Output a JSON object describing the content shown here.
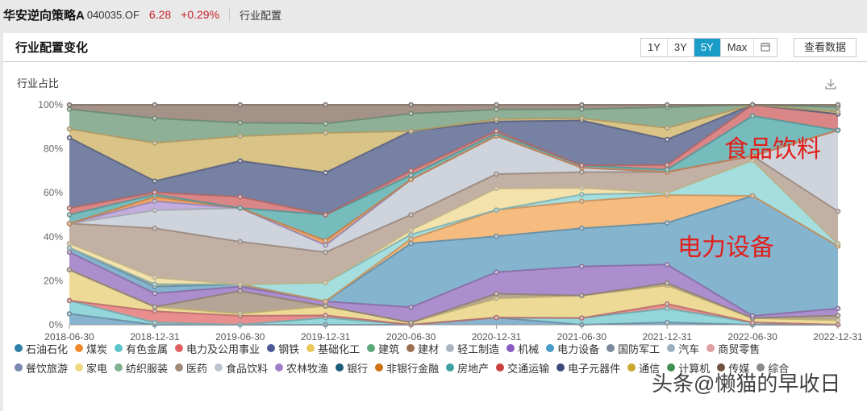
{
  "topbar": {
    "fund_name": "华安逆向策略A",
    "fund_code": "040035.OF",
    "nav": "6.28",
    "change": "+0.29%",
    "crumb": "行业配置"
  },
  "panel": {
    "title": "行业配置变化",
    "ranges": [
      "1Y",
      "3Y",
      "5Y",
      "Max"
    ],
    "active_range": "5Y",
    "calendar_icon": "calendar-icon",
    "view_data": "查看数据",
    "y_axis_title": "行业占比",
    "download_icon": "download-icon"
  },
  "annotations": {
    "food": "食品饮料",
    "power": "电力设备"
  },
  "watermark": "头条@懒猫的早收日",
  "legend": {
    "row1": [
      {
        "name": "石油石化",
        "color": "#2f7fa8"
      },
      {
        "name": "煤炭",
        "color": "#f08a2c"
      },
      {
        "name": "有色金属",
        "color": "#5cc4cc"
      },
      {
        "name": "电力及公用事业",
        "color": "#e06060"
      },
      {
        "name": "钢铁",
        "color": "#4e5a96"
      },
      {
        "name": "基础化工",
        "color": "#e8c85a"
      },
      {
        "name": "建筑",
        "color": "#5aa878"
      },
      {
        "name": "建材",
        "color": "#9a7050"
      },
      {
        "name": "轻工制造",
        "color": "#a8b4c0"
      },
      {
        "name": "机械",
        "color": "#8a5cc0"
      },
      {
        "name": "电力设备",
        "color": "#4a9cc8"
      },
      {
        "name": "国防军工",
        "color": "#7a8a9a"
      },
      {
        "name": "汽车",
        "color": "#9ab0c0"
      },
      {
        "name": "商贸零售",
        "color": "#e0a0a0"
      }
    ],
    "row2": [
      {
        "name": "餐饮旅游",
        "color": "#7a88b0"
      },
      {
        "name": "家电",
        "color": "#f0d880"
      },
      {
        "name": "纺织服装",
        "color": "#80b090"
      },
      {
        "name": "医药",
        "color": "#a08a78"
      },
      {
        "name": "食品饮料",
        "color": "#bcc4d0"
      },
      {
        "name": "农林牧渔",
        "color": "#a080c8"
      },
      {
        "name": "银行",
        "color": "#1e5a7a"
      },
      {
        "name": "非银行金融",
        "color": "#d07010"
      },
      {
        "name": "房地产",
        "color": "#40a0a0"
      },
      {
        "name": "交通运输",
        "color": "#c84040"
      },
      {
        "name": "电子元器件",
        "color": "#404878"
      },
      {
        "name": "通信",
        "color": "#c8a830"
      },
      {
        "name": "计算机",
        "color": "#409050"
      },
      {
        "name": "传媒",
        "color": "#705040"
      },
      {
        "name": "综合",
        "color": "#888888"
      }
    ]
  },
  "chart_data": {
    "type": "area",
    "stacked": true,
    "title": "行业配置变化",
    "ylabel": "行业占比",
    "xlabel": "",
    "ylim": [
      0,
      100
    ],
    "y_ticks": [
      "0%",
      "20%",
      "40%",
      "60%",
      "80%",
      "100%"
    ],
    "grid": false,
    "legend_position": "bottom",
    "categories": [
      "2018-06-30",
      "2018-12-31",
      "2019-06-30",
      "2019-12-31",
      "2020-06-30",
      "2020-12-31",
      "2021-06-30",
      "2021-12-31",
      "2022-06-30",
      "2022-12-31"
    ],
    "series": [
      {
        "name": "石油石化",
        "color": "#7fb0cc",
        "values": [
          5,
          0,
          0,
          0,
          0,
          3,
          0,
          1,
          0,
          0
        ]
      },
      {
        "name": "有色金属",
        "color": "#8ed4d8",
        "values": [
          6,
          1,
          0,
          3,
          0,
          0,
          3,
          6,
          1,
          0
        ]
      },
      {
        "name": "电力及公用事业",
        "color": "#e88888",
        "values": [
          0,
          5,
          4,
          1,
          0,
          0,
          0,
          2,
          0,
          0
        ]
      },
      {
        "name": "基础化工",
        "color": "#ecd890",
        "values": [
          14,
          2,
          1,
          4,
          1,
          8,
          10,
          8,
          2,
          2
        ]
      },
      {
        "name": "建材",
        "color": "#b0a090",
        "values": [
          0,
          0,
          10,
          0,
          0,
          2,
          0,
          1,
          0,
          2
        ]
      },
      {
        "name": "机械",
        "color": "#a888cc",
        "values": [
          8,
          6,
          2,
          2,
          7,
          9,
          13,
          8,
          1,
          3
        ]
      },
      {
        "name": "电力设备",
        "color": "#7eb0cc",
        "values": [
          2,
          3,
          1,
          0,
          29,
          15,
          17,
          18,
          54,
          27
        ]
      },
      {
        "name": "煤炭",
        "color": "#f6b878",
        "values": [
          0,
          1,
          0,
          0,
          2,
          11,
          12,
          12,
          0,
          0
        ]
      },
      {
        "name": "有色金属(2)",
        "color": "#a0dcdc",
        "values": [
          0,
          0,
          0,
          8,
          2,
          0,
          3,
          1,
          16,
          1
        ]
      },
      {
        "name": "家电",
        "color": "#f2e0a8",
        "values": [
          2,
          3,
          0,
          0,
          2,
          9,
          3,
          0,
          0,
          0
        ]
      },
      {
        "name": "医药",
        "color": "#c0aca0",
        "values": [
          9,
          22,
          19,
          13,
          7,
          6,
          7,
          9,
          2,
          14
        ]
      },
      {
        "name": "食品饮料",
        "color": "#ccd2da",
        "values": [
          0,
          8,
          15,
          3,
          16,
          16,
          2,
          0,
          0,
          35
        ]
      },
      {
        "name": "农林牧渔",
        "color": "#c0a8dc",
        "values": [
          0,
          4,
          0,
          0,
          0,
          0,
          0,
          0,
          0,
          0
        ]
      },
      {
        "name": "非银行金融",
        "color": "#f0a060",
        "values": [
          0,
          2,
          0,
          2,
          0,
          0,
          0,
          0,
          0,
          0
        ]
      },
      {
        "name": "房地产",
        "color": "#70b8b8",
        "values": [
          4,
          1,
          0,
          11,
          2,
          1,
          1,
          1,
          18,
          0
        ]
      },
      {
        "name": "交通运输",
        "color": "#d88080",
        "values": [
          3,
          1,
          5,
          0,
          2,
          1,
          0,
          2,
          5,
          7
        ]
      },
      {
        "name": "钢铁",
        "color": "#707a9e",
        "values": [
          32,
          5,
          16,
          18,
          18,
          4,
          20,
          11,
          0,
          0
        ]
      },
      {
        "name": "基础化工(2)",
        "color": "#d8c080",
        "values": [
          4,
          17,
          11,
          17,
          0,
          1,
          1,
          5,
          0,
          1
        ]
      },
      {
        "name": "建筑",
        "color": "#88ac90",
        "values": [
          9,
          11,
          6,
          4,
          8,
          4,
          4,
          9,
          0,
          2
        ]
      },
      {
        "name": "建材(2)",
        "color": "#a08c80",
        "values": [
          2,
          6,
          8,
          8,
          4,
          2,
          2,
          1,
          0,
          1
        ]
      }
    ]
  }
}
